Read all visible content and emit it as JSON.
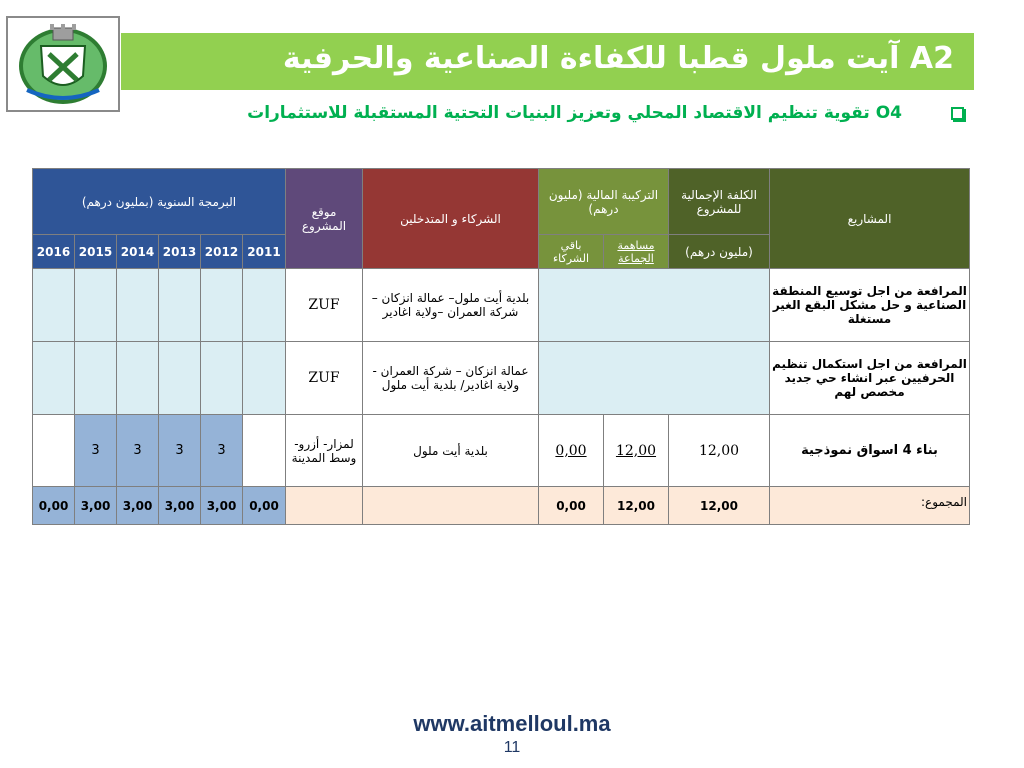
{
  "header": {
    "title": "A2 آيت ملول قطبا للكفاءة الصناعية والحرفية",
    "subtitle": "O4 تقوية تنظيم الاقتصاد المحلي وتعزيز البنيات التحتية المستقبلة للاستثمارات",
    "bullet_icon": "checkbox-bullet-icon"
  },
  "table": {
    "headers": {
      "programming": "البرمجة السنوية (بمليون درهم)",
      "site": "موقع المشروع",
      "partners": "الشركاء و المتدخلين",
      "financial": "التركيبة المالية (مليون درهم)",
      "other_partners": "باقي الشركاء",
      "community_share": "مساهمة الجماعة",
      "total_cost": "الكلفة الإجمالية للمشروع",
      "total_cost_unit": "(مليون درهم)",
      "projects": "المشاريع",
      "years": [
        "2016",
        "2015",
        "2014",
        "2013",
        "2012",
        "2011"
      ]
    },
    "rows": [
      {
        "project": "المرافعة من اجل توسيع المنطقة الصناعية و حل مشكل البقع الغير مستغلة",
        "site": "ZUF",
        "partners": "بلدية أيت ملول– عمالة انزكان – شركة العمران –ولاية اغادير",
        "total_cost": "",
        "community_share": "",
        "other_partners": "",
        "years": [
          "",
          "",
          "",
          "",
          "",
          ""
        ]
      },
      {
        "project": "المرافعة من اجل استكمال تنظيم الحرفيين عبر انشاء حي جديد مخصص لهم",
        "site": "ZUF",
        "partners": "عمالة انزكان – شركة العمران - ولاية اغادير/ بلدية أيت ملول",
        "total_cost": "",
        "community_share": "",
        "other_partners": "",
        "years": [
          "",
          "",
          "",
          "",
          "",
          ""
        ]
      },
      {
        "project": "بناء 4 اسواق نموذجية",
        "site": "لمزار- أزرو- وسط المدينة",
        "partners": "بلدية أيت ملول",
        "total_cost": "12,00",
        "community_share": "12,00",
        "other_partners": "0,00",
        "years": [
          "",
          "3",
          "3",
          "3",
          "3",
          ""
        ]
      }
    ],
    "total": {
      "label": "المجموع:",
      "total_cost": "12,00",
      "community_share": "12,00",
      "other_partners": "0,00",
      "years": [
        "0,00",
        "3,00",
        "3,00",
        "3,00",
        "3,00",
        "0,00"
      ]
    }
  },
  "colors": {
    "title_bar": "#92d050",
    "subtitle": "#00b050",
    "programming_header": "#2f5597",
    "site_header": "#5f497a",
    "partners_header": "#953734",
    "financial_header": "#77933c",
    "projects_header": "#4f6228",
    "footer_text": "#1f3864"
  },
  "footer": {
    "url": "www.aitmelloul.ma",
    "page_number": "11"
  },
  "logo": {
    "icon": "municipal-emblem-icon"
  }
}
